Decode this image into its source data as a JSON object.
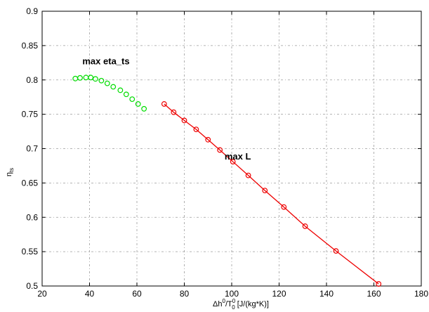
{
  "chart_data": {
    "type": "line",
    "xlim": [
      20,
      180
    ],
    "ylim": [
      0.5,
      0.9
    ],
    "xticks": [
      20,
      40,
      60,
      80,
      100,
      120,
      140,
      160,
      180
    ],
    "yticks": [
      0.5,
      0.55,
      0.6,
      0.65,
      0.7,
      0.75,
      0.8,
      0.85,
      0.9
    ],
    "xtick_labels": [
      "20",
      "40",
      "60",
      "80",
      "100",
      "120",
      "140",
      "160",
      "180"
    ],
    "ytick_labels": [
      "0.5",
      "0.55",
      "0.6",
      "0.65",
      "0.7",
      "0.75",
      "0.8",
      "0.85",
      "0.9"
    ],
    "grid": true,
    "xlabel": {
      "delta": "Δh",
      "sup1": "0",
      "slash": "/T",
      "sup2": "0",
      "sub2": "0",
      "units": " [J/(kg*K)]"
    },
    "ylabel": {
      "base": "η",
      "sub": "ts"
    },
    "series": [
      {
        "color": "#00dd00",
        "marker": "circle",
        "line": false,
        "x": [
          34,
          36,
          38.5,
          40.5,
          42.5,
          45,
          47.5,
          50,
          53,
          55.5,
          58,
          60.5,
          63
        ],
        "y": [
          0.802,
          0.803,
          0.8035,
          0.8035,
          0.8015,
          0.799,
          0.795,
          0.79,
          0.785,
          0.779,
          0.772,
          0.765,
          0.758
        ]
      },
      {
        "color": "#ee0000",
        "marker": "circle",
        "line": true,
        "x": [
          71.5,
          75.5,
          80,
          85,
          90,
          95,
          100.5,
          107,
          114,
          122,
          131,
          144,
          162
        ],
        "y": [
          0.765,
          0.753,
          0.741,
          0.728,
          0.713,
          0.698,
          0.681,
          0.661,
          0.639,
          0.615,
          0.587,
          0.551,
          0.503
        ]
      }
    ],
    "annotations": [
      {
        "text": "max eta_ts",
        "x": 37,
        "y": 0.823
      },
      {
        "text": "max L",
        "x": 97,
        "y": 0.684
      }
    ]
  }
}
